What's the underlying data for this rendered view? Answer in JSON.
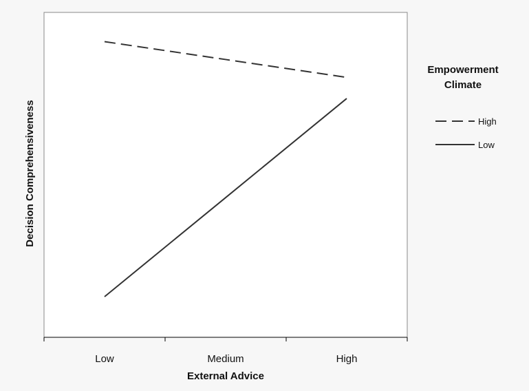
{
  "chart_data": {
    "type": "line",
    "title": "",
    "xlabel": "External Advice",
    "ylabel": "Decision Comprehensiveness",
    "categories": [
      "Low",
      "Medium",
      "High"
    ],
    "ylim": [
      0,
      100
    ],
    "grid": false,
    "legend": {
      "title_lines": [
        "Empowerment",
        "Climate"
      ],
      "placement": "right"
    },
    "series": [
      {
        "name": "High",
        "style": "dashed",
        "color": "#333333",
        "values": [
          91,
          85.5,
          80
        ]
      },
      {
        "name": "Low",
        "style": "solid",
        "color": "#333333",
        "values": [
          12.5,
          43,
          73.5
        ]
      }
    ]
  }
}
